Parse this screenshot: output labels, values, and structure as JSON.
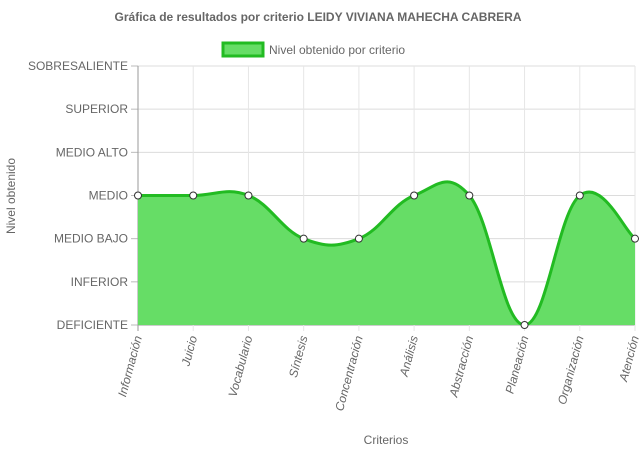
{
  "chart_data": {
    "type": "area",
    "title": "Gráfica de resultados por criterio LEIDY VIVIANA MAHECHA CABRERA",
    "xlabel": "Criterios",
    "ylabel": "Nivel obtenido",
    "y_levels": [
      "DEFICIENTE",
      "INFERIOR",
      "MEDIO BAJO",
      "MEDIO",
      "MEDIO ALTO",
      "SUPERIOR",
      "SOBRESALIENTE"
    ],
    "ylim": [
      0,
      6
    ],
    "categories": [
      "Información",
      "Juicio",
      "Vocabulario",
      "Síntesis",
      "Concentración",
      "Análisis",
      "Abstracción",
      "Planeación",
      "Organización",
      "Atención"
    ],
    "series": [
      {
        "name": "Nivel obtenido por criterio",
        "values": [
          3,
          3,
          3,
          2,
          2,
          3,
          3,
          0,
          3,
          2
        ],
        "fill_color": "#66dd66",
        "line_color": "#22bb22"
      }
    ],
    "legend_position": "top-center",
    "grid": true
  }
}
